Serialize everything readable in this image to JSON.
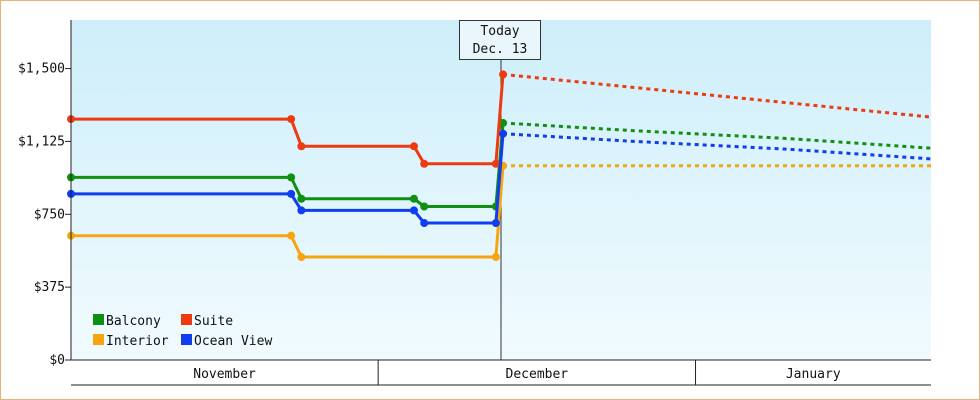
{
  "chart_data": {
    "type": "line",
    "ylim": [
      0,
      1750
    ],
    "yticks": [
      {
        "value": 0,
        "label": "$0"
      },
      {
        "value": 375,
        "label": "$375"
      },
      {
        "value": 750,
        "label": "$750"
      },
      {
        "value": 1125,
        "label": "$1,125"
      },
      {
        "value": 1500,
        "label": "$1,500"
      }
    ],
    "months": [
      "November",
      "December",
      "January"
    ],
    "today": {
      "line1": "Today",
      "line2": "Dec. 13"
    },
    "legend_placement": "bottom-left",
    "x_units": "days from Nov. 1",
    "today_x": 42,
    "xlim": [
      0,
      84
    ],
    "series": [
      {
        "name": "Balcony",
        "color": "#109010",
        "actual": [
          [
            0,
            940
          ],
          [
            21.5,
            940
          ],
          [
            22.5,
            830
          ],
          [
            33.5,
            830
          ],
          [
            34.5,
            790
          ],
          [
            41.5,
            790
          ],
          [
            42.2,
            1220
          ]
        ],
        "forecast": [
          [
            42.2,
            1220
          ],
          [
            55,
            1180
          ],
          [
            70,
            1140
          ],
          [
            84,
            1090
          ]
        ]
      },
      {
        "name": "Suite",
        "color": "#ee3a10",
        "actual": [
          [
            0,
            1240
          ],
          [
            21.5,
            1240
          ],
          [
            22.5,
            1100
          ],
          [
            33.5,
            1100
          ],
          [
            34.5,
            1010
          ],
          [
            41.5,
            1010
          ],
          [
            42.2,
            1470
          ]
        ],
        "forecast": [
          [
            42.2,
            1470
          ],
          [
            84,
            1250
          ]
        ]
      },
      {
        "name": "Interior",
        "color": "#f6a50f",
        "actual": [
          [
            0,
            640
          ],
          [
            21.5,
            640
          ],
          [
            22.5,
            530
          ],
          [
            41.5,
            530
          ],
          [
            42.2,
            1000
          ]
        ],
        "forecast": [
          [
            42.2,
            1000
          ],
          [
            84,
            1000
          ]
        ]
      },
      {
        "name": "Ocean View",
        "color": "#0f3df0",
        "actual": [
          [
            0,
            855
          ],
          [
            21.5,
            855
          ],
          [
            22.5,
            770
          ],
          [
            33.5,
            770
          ],
          [
            34.5,
            705
          ],
          [
            41.5,
            705
          ],
          [
            42.2,
            1165
          ]
        ],
        "forecast": [
          [
            42.2,
            1165
          ],
          [
            55,
            1125
          ],
          [
            70,
            1085
          ],
          [
            84,
            1035
          ]
        ]
      }
    ]
  }
}
